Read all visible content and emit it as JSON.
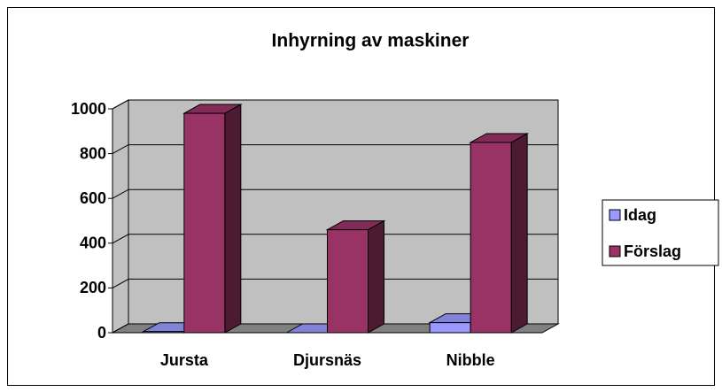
{
  "chart_data": {
    "type": "bar3d",
    "title": "Inhyrning av maskiner",
    "categories": [
      "Jursta",
      "Djursnäs",
      "Nibble"
    ],
    "series": [
      {
        "name": "Idag",
        "color": "#9999ff",
        "values": [
          5,
          0,
          45
        ]
      },
      {
        "name": "Förslag",
        "color": "#993366",
        "values": [
          980,
          460,
          850
        ]
      }
    ],
    "ylim": [
      0,
      1000
    ],
    "yticks": [
      0,
      200,
      400,
      600,
      800,
      1000
    ],
    "grid": true,
    "legend": "right"
  }
}
